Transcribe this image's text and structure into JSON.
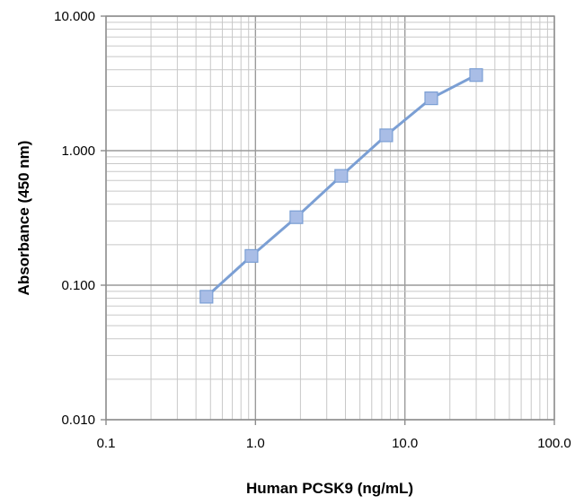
{
  "chart_data": {
    "type": "line",
    "title": "",
    "xlabel": "Human PCSK9 (ng/mL)",
    "ylabel": "Absorbance (450 nm)",
    "x_scale": "log",
    "y_scale": "log",
    "xlim": [
      0.1,
      100
    ],
    "ylim": [
      0.01,
      10
    ],
    "x_tick_labels": [
      "0.1",
      "1.0",
      "10.0",
      "100.0"
    ],
    "y_tick_labels": [
      "0.010",
      "0.100",
      "1.000",
      "10.000"
    ],
    "grid": true,
    "legend": "none",
    "series": [
      {
        "x": [
          0.47,
          0.94,
          1.88,
          3.75,
          7.5,
          15,
          30
        ],
        "y": [
          0.082,
          0.165,
          0.32,
          0.65,
          1.3,
          2.45,
          3.65
        ],
        "color": "#7b9fd4",
        "marker": "square"
      }
    ]
  }
}
